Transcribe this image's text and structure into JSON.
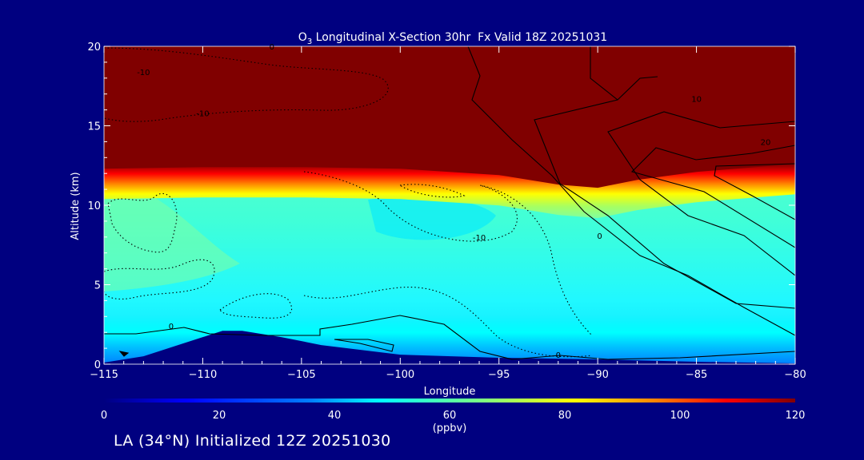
{
  "chart_data": {
    "type": "heatmap",
    "title": "O3 Longitudinal X-Section 30hr  Fx Valid 18Z 20251031",
    "title_parts": {
      "main": "O",
      "sub": "3",
      "rest": " Longitudinal X-Section 30hr  Fx Valid 18Z 20251031"
    },
    "xlabel": "Longitude",
    "ylabel": "Altitude (km)",
    "xlim": [
      -115,
      -80
    ],
    "ylim": [
      0,
      20
    ],
    "x_ticks": [
      -115,
      -110,
      -105,
      -100,
      -95,
      -90,
      -85,
      -80
    ],
    "x_tick_labels": [
      "−115",
      "−110",
      "−105",
      "−100",
      "−95",
      "−90",
      "−85",
      "−80"
    ],
    "y_ticks": [
      0,
      5,
      10,
      15,
      20
    ],
    "y_tick_labels": [
      "0",
      "5",
      "10",
      "15",
      "20"
    ],
    "colorbar": {
      "range": [
        0,
        120
      ],
      "ticks": [
        0,
        20,
        40,
        60,
        80,
        100,
        120
      ],
      "tick_labels": [
        "0",
        "20",
        "40",
        "60",
        "80",
        "100",
        "120"
      ],
      "unit_label": "(ppbv)",
      "colors": [
        "#00007f",
        "#0000ff",
        "#007fff",
        "#00ffff",
        "#7fff7f",
        "#ffff00",
        "#ff7f00",
        "#ff0000",
        "#7f0000"
      ]
    },
    "tropopause_altitude_km": [
      [
        -115,
        12.2
      ],
      [
        -110,
        12.3
      ],
      [
        -105,
        12.3
      ],
      [
        -100,
        12.2
      ],
      [
        -95,
        11.8
      ],
      [
        -92,
        11.2
      ],
      [
        -90,
        11.0
      ],
      [
        -88,
        11.5
      ],
      [
        -85,
        12.0
      ],
      [
        -82,
        12.3
      ],
      [
        -80,
        12.5
      ]
    ],
    "terrain_altitude_km": [
      [
        -115,
        0.1
      ],
      [
        -113,
        0.5
      ],
      [
        -111,
        1.3
      ],
      [
        -109,
        2.1
      ],
      [
        -108,
        2.1
      ],
      [
        -106,
        1.7
      ],
      [
        -104,
        1.2
      ],
      [
        -102,
        0.9
      ],
      [
        -100,
        0.6
      ],
      [
        -95,
        0.4
      ],
      [
        -90,
        0.3
      ],
      [
        -85,
        0.15
      ],
      [
        -80,
        0.05
      ]
    ],
    "contour_labels": [
      {
        "text": "-10",
        "lon": -113,
        "alt": 18.2
      },
      {
        "text": "-10",
        "lon": -110,
        "alt": 15.6
      },
      {
        "text": "0",
        "lon": -106.5,
        "alt": 19.8
      },
      {
        "text": "-10",
        "lon": -96,
        "alt": 7.8
      },
      {
        "text": "0",
        "lon": -89.9,
        "alt": 7.9
      },
      {
        "text": "10",
        "lon": -85,
        "alt": 16.5
      },
      {
        "text": "20",
        "lon": -81.5,
        "alt": 13.8
      },
      {
        "text": "0",
        "lon": -111.6,
        "alt": 2.2
      },
      {
        "text": "0",
        "lon": -92,
        "alt": 0.4
      }
    ]
  },
  "footer": "LA (34°N) Initialized 12Z 20251030"
}
